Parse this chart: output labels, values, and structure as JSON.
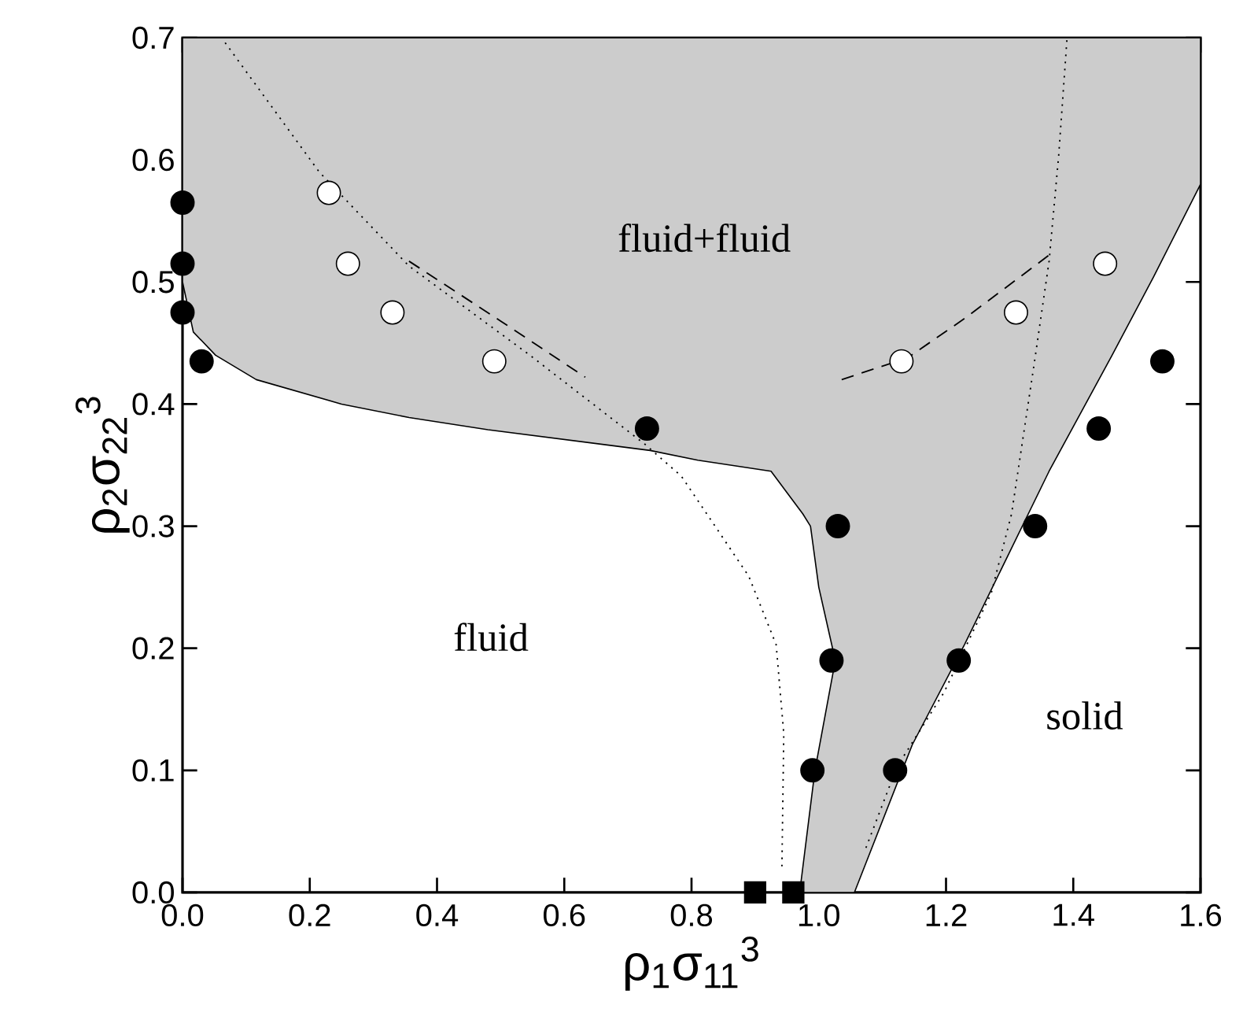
{
  "chart_data": {
    "type": "scatter",
    "xlabel": "ρ$_{1}$σ$_{11}$$^{3}$",
    "ylabel": "ρ$_{2}$σ$_{22}$$^{3}$",
    "xlim": [
      0,
      1.6
    ],
    "ylim": [
      0,
      0.7
    ],
    "xticks": [
      {
        "value": 0,
        "label": "0.0"
      },
      0.2,
      0.4,
      0.6,
      0.8,
      {
        "value": 1,
        "label": "1.0"
      },
      1.2,
      1.4,
      1.6
    ],
    "yticks": [
      {
        "value": 0,
        "label": "0.0"
      },
      0.1,
      0.2,
      0.3,
      0.4,
      0.5,
      0.6,
      0.7
    ],
    "grid": false,
    "series": [
      {
        "type": "area",
        "color": "#cccccc",
        "line_style": "solid",
        "x": [
          0,
          0,
          0.017,
          0.052,
          0.116,
          0.25,
          0.356,
          0.48,
          0.735,
          0.81,
          0.925,
          0.975,
          0.987,
          1.0,
          1.026,
          0.994,
          0.97,
          1.056,
          1.147,
          1.229,
          1.362,
          1.461,
          1.526,
          1.6,
          1.6
        ],
        "values": [
          0.7,
          0.5,
          0.459,
          0.44,
          0.42,
          0.4,
          0.389,
          0.379,
          0.362,
          0.354,
          0.345,
          0.31,
          0.3,
          0.25,
          0.19,
          0.1,
          0,
          0,
          0.121,
          0.203,
          0.345,
          0.44,
          0.504,
          0.58,
          0.7
        ]
      },
      {
        "type": "line",
        "color": "#000000",
        "line_style": "dotted",
        "x": [
          0.067,
          0.215,
          0.356,
          0.546,
          0.727,
          0.784,
          0.89,
          0.933,
          0.945,
          0.942
        ],
        "values": [
          0.696,
          0.59,
          0.513,
          0.44,
          0.367,
          0.341,
          0.259,
          0.203,
          0.13,
          0.018
        ]
      },
      {
        "type": "line",
        "color": "#000000",
        "line_style": "dotted",
        "x": [
          1.39,
          1.377,
          1.362,
          1.338,
          1.303,
          1.271,
          1.197,
          1.123,
          1.073
        ],
        "values": [
          0.698,
          0.603,
          0.517,
          0.431,
          0.31,
          0.245,
          0.164,
          0.103,
          0.035
        ]
      },
      {
        "type": "line",
        "color": "#000000",
        "line_style": "dashed",
        "x": [
          0.356,
          0.5,
          0.633
        ],
        "values": [
          0.517,
          0.468,
          0.422
        ]
      },
      {
        "type": "line",
        "color": "#000000",
        "line_style": "dashed",
        "x": [
          1.036,
          1.14,
          1.229,
          1.362
        ],
        "values": [
          0.42,
          0.438,
          0.47,
          0.522
        ]
      },
      {
        "color": "#000000",
        "marker": "circle",
        "x": [
          0,
          0,
          0,
          0.03,
          0.73,
          1.03,
          1.02,
          0.99,
          1.12,
          1.22,
          1.34,
          1.44,
          1.54
        ],
        "values": [
          0.565,
          0.515,
          0.475,
          0.435,
          0.38,
          0.3,
          0.19,
          0.1,
          0.1,
          0.19,
          0.3,
          0.38,
          0.435
        ]
      },
      {
        "color": "#ffffff",
        "marker": "circle",
        "x": [
          0.23,
          0.26,
          0.33,
          0.49,
          1.13,
          1.31,
          1.45
        ],
        "values": [
          0.573,
          0.515,
          0.475,
          0.435,
          0.435,
          0.475,
          0.515
        ]
      },
      {
        "color": "#000000",
        "marker": "square",
        "x": [
          0.9,
          0.96
        ],
        "values": [
          0,
          0
        ]
      }
    ],
    "annotations": [
      "fluid+fluid",
      "fluid",
      "solid"
    ]
  }
}
